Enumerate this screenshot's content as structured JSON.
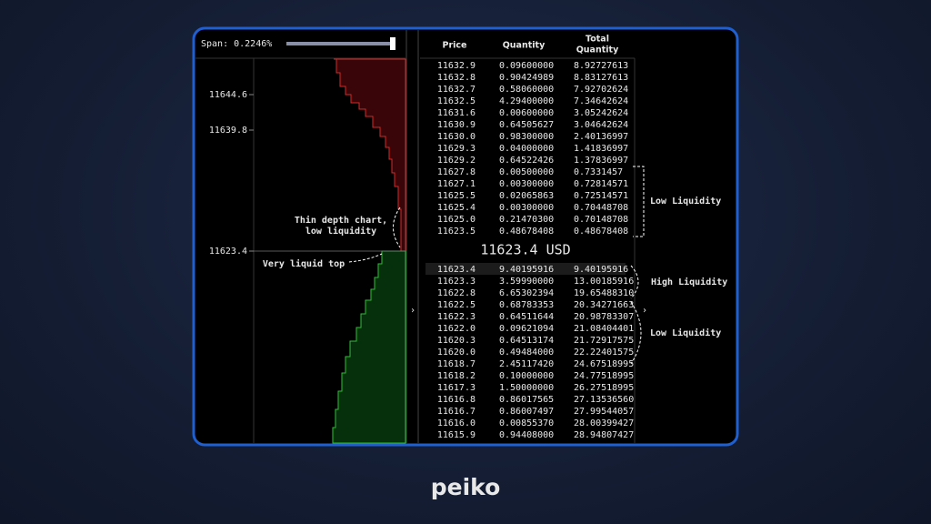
{
  "depth_chart": {
    "span_label": "Span: 0.2246%",
    "price_labels": [
      "11644.6",
      "11639.8",
      "11623.4"
    ],
    "annotation_thin": [
      "Thin depth chart,",
      "low liquidity"
    ],
    "annotation_top": "Very liquid top"
  },
  "order_book": {
    "headers": {
      "price": "Price",
      "quantity": "Quantity",
      "total": [
        "Total",
        "Quantity"
      ]
    },
    "asks": [
      [
        "11632.9",
        "0.09600000",
        "8.92727613"
      ],
      [
        "11632.8",
        "0.90424989",
        "8.83127613"
      ],
      [
        "11632.7",
        "0.58060000",
        "7.92702624"
      ],
      [
        "11632.5",
        "4.29400000",
        "7.34642624"
      ],
      [
        "11631.6",
        "0.00600000",
        "3.05242624"
      ],
      [
        "11630.9",
        "0.64505627",
        "3.04642624"
      ],
      [
        "11630.0",
        "0.98300000",
        "2.40136997"
      ],
      [
        "11629.3",
        "0.04000000",
        "1.41836997"
      ],
      [
        "11629.2",
        "0.64522426",
        "1.37836997"
      ],
      [
        "11627.8",
        "0.00500000",
        "0.7331457"
      ],
      [
        "11627.1",
        "0.00300000",
        "0.72814571"
      ],
      [
        "11625.5",
        "0.02065863",
        "0.72514571"
      ],
      [
        "11625.4",
        "0.00300000",
        "0.70448708"
      ],
      [
        "11625.0",
        "0.21470300",
        "0.70148708"
      ],
      [
        "11623.5",
        "0.48678408",
        "0.48678408"
      ]
    ],
    "mid_price": "11623.4 USD",
    "bids": [
      [
        "11623.4",
        "9.40195916",
        "9.40195916"
      ],
      [
        "11623.3",
        "3.59990000",
        "13.00185916"
      ],
      [
        "11622.8",
        "6.65302394",
        "19.65488310"
      ],
      [
        "11622.5",
        "0.68783353",
        "20.34271663"
      ],
      [
        "11622.3",
        "0.64511644",
        "20.98783307"
      ],
      [
        "11622.0",
        "0.09621094",
        "21.08404401"
      ],
      [
        "11620.3",
        "0.64513174",
        "21.72917575"
      ],
      [
        "11620.0",
        "0.49484000",
        "22.22401575"
      ],
      [
        "11618.7",
        "2.45117420",
        "24.67518995"
      ],
      [
        "11618.2",
        "0.10000000",
        "24.77518995"
      ],
      [
        "11617.3",
        "1.50000000",
        "26.27518995"
      ],
      [
        "11616.8",
        "0.86017565",
        "27.13536560"
      ],
      [
        "11616.7",
        "0.86007497",
        "27.99544057"
      ],
      [
        "11616.0",
        "0.00855370",
        "28.00399427"
      ],
      [
        "11615.9",
        "0.94408000",
        "28.94807427"
      ]
    ],
    "side_labels": [
      "Low Liquidity",
      "High Liquidity",
      "Low Liquidity"
    ]
  },
  "brand": "peiko"
}
